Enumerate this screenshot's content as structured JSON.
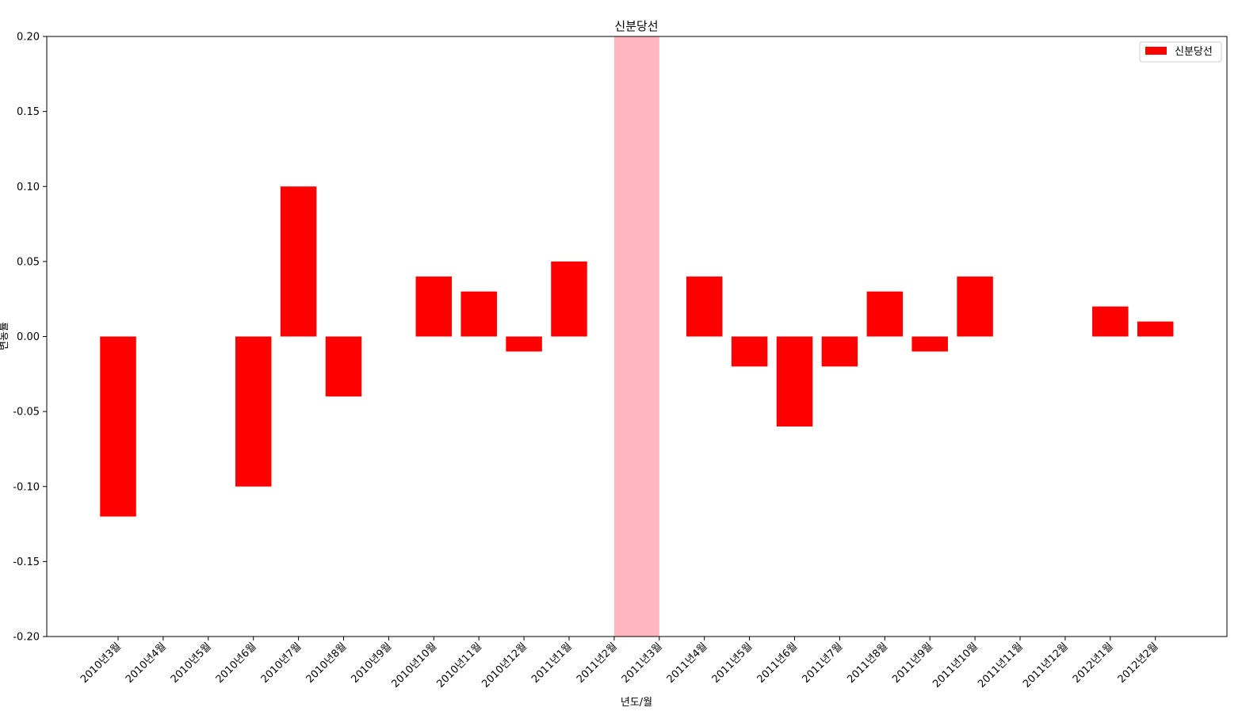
{
  "chart_data": {
    "type": "bar",
    "title": "신분당선",
    "xlabel": "년도/월",
    "ylabel": "변동률",
    "ylim": [
      -0.2,
      0.2
    ],
    "yticks": [
      -0.2,
      -0.15,
      -0.1,
      -0.05,
      0.0,
      0.05,
      0.1,
      0.15,
      0.2
    ],
    "ytick_labels": [
      "-0.20",
      "-0.15",
      "-0.10",
      "-0.05",
      "0.00",
      "0.05",
      "0.10",
      "0.15",
      "0.20"
    ],
    "categories": [
      "2010년3월",
      "2010년4월",
      "2010년5월",
      "2010년6월",
      "2010년7월",
      "2010년8월",
      "2010년9월",
      "2010년10월",
      "2010년11월",
      "2010년12월",
      "2011년1월",
      "2011년2월",
      "2011년3월",
      "2011년4월",
      "2011년5월",
      "2011년6월",
      "2011년7월",
      "2011년8월",
      "2011년9월",
      "2011년10월",
      "2011년11월",
      "2011년12월",
      "2012년1월",
      "2012년2월"
    ],
    "series": [
      {
        "name": "신분당선",
        "color": "#ff0000",
        "values": [
          -0.12,
          0,
          0,
          -0.1,
          0.1,
          -0.04,
          0,
          0.04,
          0.03,
          -0.01,
          0.05,
          0,
          0,
          0.04,
          -0.02,
          -0.06,
          -0.02,
          0.03,
          -0.01,
          0.04,
          0,
          0,
          0.02,
          0.01
        ]
      }
    ],
    "highlight": {
      "from_category": "2011년2월",
      "to_category": "2011년3월",
      "color": "#ffb6c1"
    },
    "legend": "top-right",
    "grid": false
  }
}
